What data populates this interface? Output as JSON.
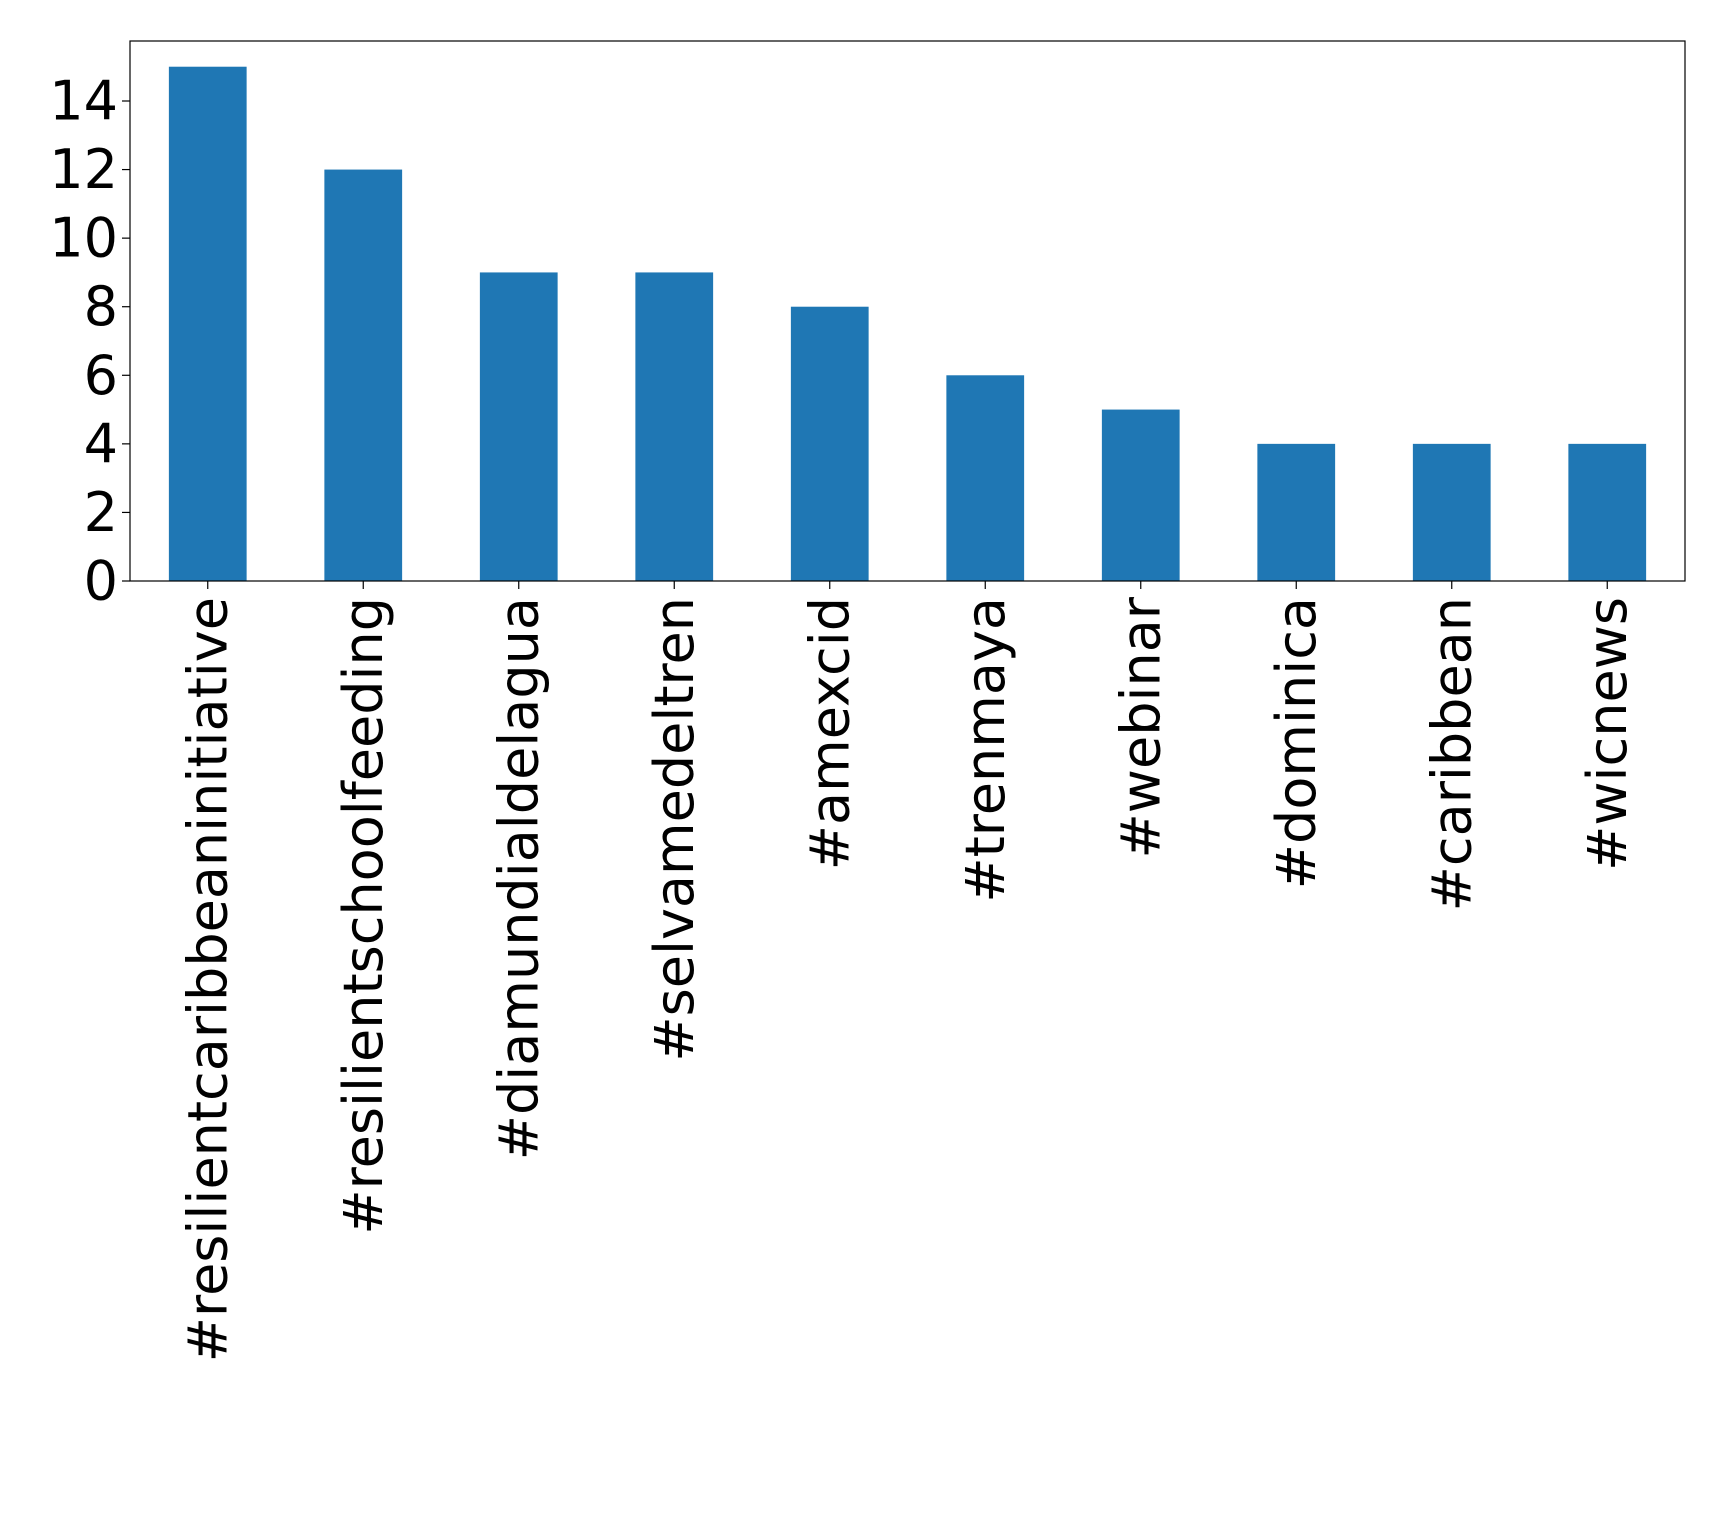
{
  "chart_data": {
    "type": "bar",
    "categories": [
      "#resilientcaribbeaninitiative",
      "#resilientschoolfeeding",
      "#diamundialdelagua",
      "#selvamedeltren",
      "#amexcid",
      "#trenmaya",
      "#webinar",
      "#dominica",
      "#caribbean",
      "#wicnews"
    ],
    "values": [
      15,
      12,
      9,
      9,
      8,
      6,
      5,
      4,
      4,
      4
    ],
    "title": "",
    "xlabel": "",
    "ylabel": "",
    "ylim": [
      0,
      15.75
    ],
    "yticks": [
      0,
      2,
      4,
      6,
      8,
      10,
      12,
      14
    ],
    "grid": false,
    "legend": "none",
    "colors": {
      "bar": "#1f77b4",
      "axis": "#000000"
    }
  }
}
